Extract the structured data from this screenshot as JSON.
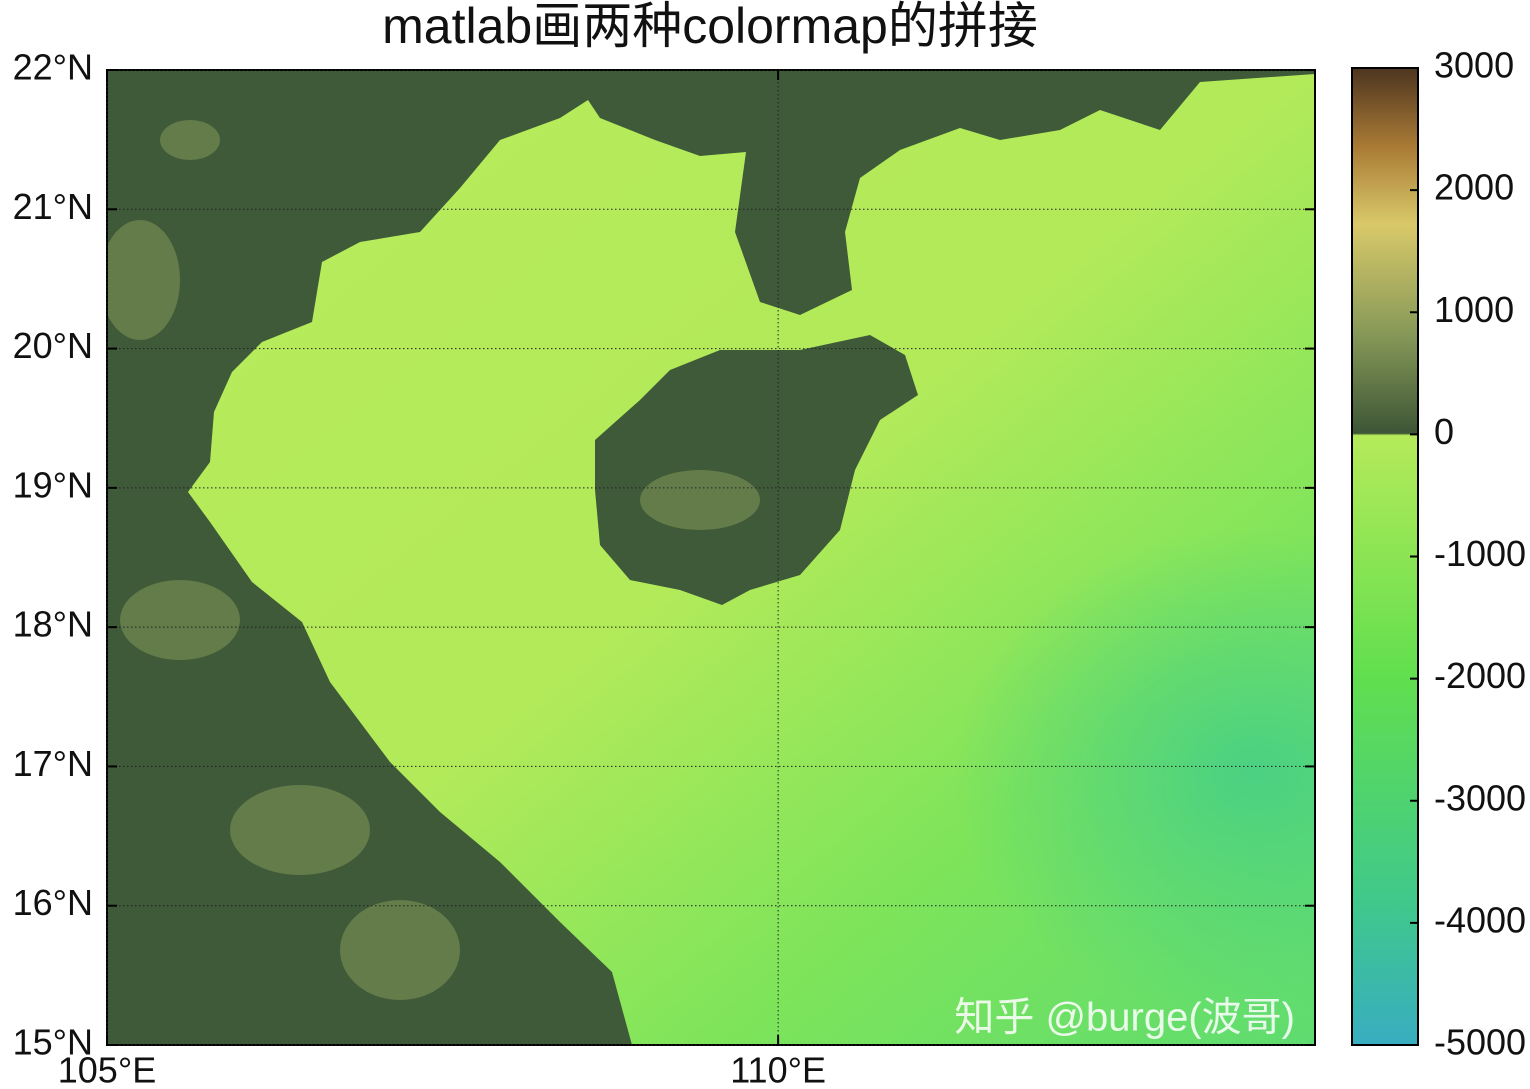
{
  "chart_data": {
    "type": "map",
    "title": "matlab画两种colormap的拼接",
    "xlim": [
      105,
      114
    ],
    "ylim": [
      15,
      22
    ],
    "xticks": [
      {
        "value": 105,
        "label": "105°E"
      },
      {
        "value": 110,
        "label": "110°E"
      }
    ],
    "yticks": [
      {
        "value": 15,
        "label": "15°N"
      },
      {
        "value": 16,
        "label": "16°N"
      },
      {
        "value": 17,
        "label": "17°N"
      },
      {
        "value": 18,
        "label": "18°N"
      },
      {
        "value": 19,
        "label": "19°N"
      },
      {
        "value": 20,
        "label": "20°N"
      },
      {
        "value": 21,
        "label": "21°N"
      },
      {
        "value": 22,
        "label": "22°N"
      }
    ],
    "grid": true,
    "colorbar": {
      "clim": [
        -5000,
        3000
      ],
      "ticks": [
        -5000,
        -4000,
        -3000,
        -2000,
        -1000,
        0,
        1000,
        2000,
        3000
      ]
    },
    "watermark": "知乎 @burge(波哥)"
  }
}
